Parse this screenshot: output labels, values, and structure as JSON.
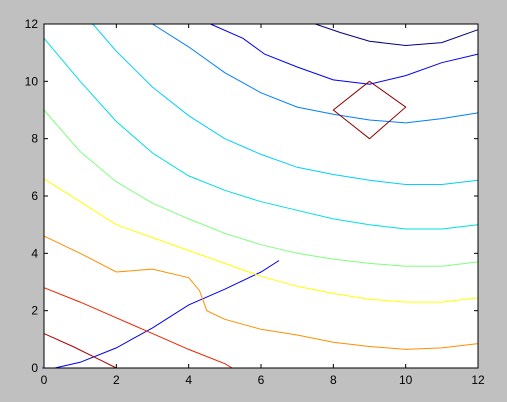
{
  "window": {
    "background": "#c0c0c0"
  },
  "chart_data": {
    "type": "line",
    "title": "",
    "xlabel": "",
    "ylabel": "",
    "xlim": [
      0,
      12
    ],
    "ylim": [
      0,
      12
    ],
    "xticks": [
      0,
      2,
      4,
      6,
      8,
      10,
      12
    ],
    "yticks": [
      0,
      2,
      4,
      6,
      8,
      10,
      12
    ],
    "xtick_labels": [
      "0",
      "2",
      "4",
      "6",
      "8",
      "10",
      "12"
    ],
    "ytick_labels": [
      "0",
      "2",
      "4",
      "6",
      "8",
      "10",
      "12"
    ],
    "grid": false,
    "legend": "none",
    "series": [
      {
        "color": "#00007f",
        "points": [
          [
            7.5,
            12
          ],
          [
            8.2,
            11.7
          ],
          [
            9,
            11.4
          ],
          [
            10,
            11.25
          ],
          [
            11,
            11.35
          ],
          [
            12,
            11.8
          ]
        ]
      },
      {
        "color": "#0000ef",
        "points": [
          [
            4.6,
            12
          ],
          [
            5.5,
            11.5
          ],
          [
            6.1,
            10.95
          ],
          [
            7,
            10.5
          ],
          [
            8,
            10.05
          ],
          [
            9,
            9.9
          ],
          [
            10,
            10.2
          ],
          [
            11,
            10.65
          ],
          [
            12,
            10.95
          ]
        ]
      },
      {
        "color": "#0000ef",
        "points": [
          [
            -0.05,
            0
          ],
          [
            0.3,
            0
          ],
          [
            1,
            0.2
          ],
          [
            2,
            0.7
          ],
          [
            3,
            1.4
          ],
          [
            4,
            2.2
          ],
          [
            5,
            2.75
          ],
          [
            6,
            3.35
          ],
          [
            6.5,
            3.75
          ]
        ]
      },
      {
        "color": "#007fff",
        "points": [
          [
            3,
            12
          ],
          [
            4,
            11.2
          ],
          [
            5,
            10.3
          ],
          [
            6,
            9.6
          ],
          [
            7,
            9.1
          ],
          [
            8,
            8.85
          ],
          [
            9,
            8.65
          ],
          [
            10,
            8.55
          ],
          [
            11,
            8.7
          ],
          [
            12,
            8.9
          ]
        ]
      },
      {
        "color": "#00cfff",
        "points": [
          [
            1.35,
            12
          ],
          [
            2,
            11.05
          ],
          [
            3,
            9.8
          ],
          [
            4,
            8.8
          ],
          [
            5,
            8
          ],
          [
            6,
            7.45
          ],
          [
            7,
            7
          ],
          [
            8,
            6.75
          ],
          [
            9,
            6.55
          ],
          [
            10,
            6.4
          ],
          [
            11,
            6.4
          ],
          [
            12,
            6.55
          ]
        ]
      },
      {
        "color": "#00dfdf",
        "points": [
          [
            0,
            11.5
          ],
          [
            1,
            10
          ],
          [
            2,
            8.6
          ],
          [
            3,
            7.5
          ],
          [
            4,
            6.7
          ],
          [
            5,
            6.2
          ],
          [
            6,
            5.8
          ],
          [
            7,
            5.5
          ],
          [
            8,
            5.2
          ],
          [
            9,
            5
          ],
          [
            10,
            4.85
          ],
          [
            11,
            4.85
          ],
          [
            12,
            5
          ]
        ]
      },
      {
        "color": "#7fff7f",
        "points": [
          [
            0,
            9
          ],
          [
            1,
            7.55
          ],
          [
            2,
            6.5
          ],
          [
            3,
            5.75
          ],
          [
            4,
            5.2
          ],
          [
            5,
            4.7
          ],
          [
            6,
            4.3
          ],
          [
            7,
            4
          ],
          [
            8,
            3.8
          ],
          [
            9,
            3.65
          ],
          [
            10,
            3.55
          ],
          [
            11,
            3.55
          ],
          [
            12,
            3.7
          ]
        ]
      },
      {
        "color": "#ffff00",
        "points": [
          [
            0,
            6.6
          ],
          [
            1,
            5.8
          ],
          [
            2,
            5
          ],
          [
            3,
            4.55
          ],
          [
            4,
            4.1
          ],
          [
            5,
            3.65
          ],
          [
            6,
            3.2
          ],
          [
            7,
            2.85
          ],
          [
            8,
            2.6
          ],
          [
            9,
            2.4
          ],
          [
            10,
            2.3
          ],
          [
            11,
            2.3
          ],
          [
            12,
            2.45
          ]
        ]
      },
      {
        "color": "#ff8f00",
        "points": [
          [
            0,
            4.6
          ],
          [
            1,
            4
          ],
          [
            2,
            3.35
          ],
          [
            3,
            3.45
          ],
          [
            4,
            3.15
          ],
          [
            4.3,
            2.7
          ],
          [
            4.5,
            2
          ],
          [
            5,
            1.7
          ],
          [
            6,
            1.35
          ],
          [
            7,
            1.15
          ],
          [
            8,
            0.9
          ],
          [
            9,
            0.75
          ],
          [
            10,
            0.65
          ],
          [
            11,
            0.7
          ],
          [
            12,
            0.85
          ]
        ]
      },
      {
        "color": "#ef2000",
        "points": [
          [
            0,
            2.8
          ],
          [
            1,
            2.3
          ],
          [
            2,
            1.75
          ],
          [
            3,
            1.2
          ],
          [
            4,
            0.65
          ],
          [
            5,
            0.15
          ],
          [
            5.2,
            0
          ]
        ]
      },
      {
        "color": "#af0000",
        "points": [
          [
            0,
            1.2
          ],
          [
            0.8,
            0.75
          ],
          [
            1.6,
            0.25
          ],
          [
            2,
            0
          ]
        ]
      },
      {
        "color": "#8f0000",
        "points": [
          [
            9,
            10
          ],
          [
            10,
            9.1
          ],
          [
            9,
            8
          ],
          [
            8,
            9
          ],
          [
            9,
            10
          ]
        ]
      }
    ]
  }
}
